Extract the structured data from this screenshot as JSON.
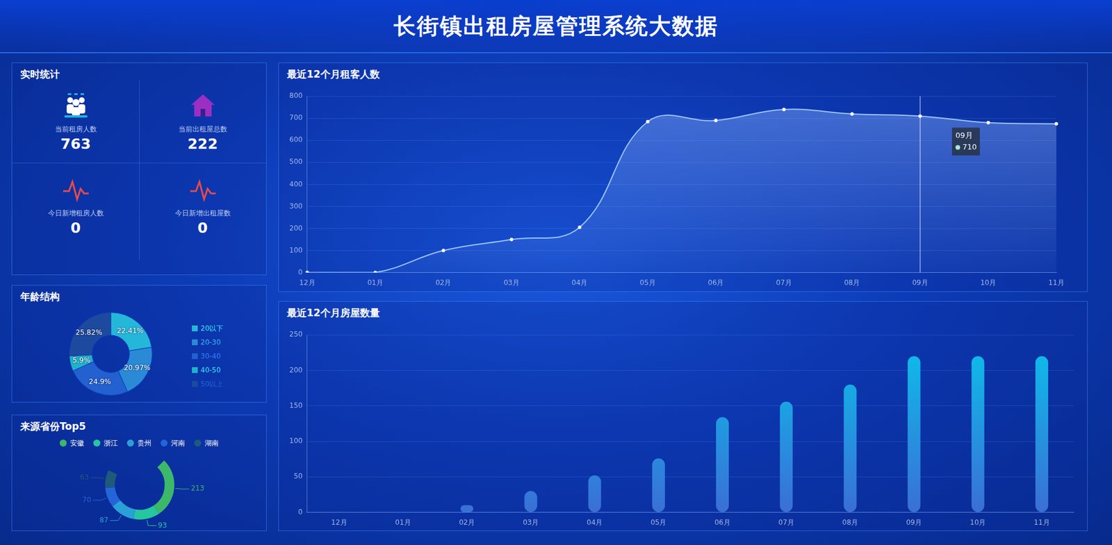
{
  "title": "长街镇出租房屋管理系统大数据",
  "stats": {
    "title": "实时统计",
    "items": [
      {
        "label": "当前租房人数",
        "value": 763
      },
      {
        "label": "当前出租屋总数",
        "value": 222
      },
      {
        "label": "今日新增租房人数",
        "value": 0
      },
      {
        "label": "今日新增出租屋数",
        "value": 0
      }
    ]
  },
  "chart_data": [
    {
      "type": "line",
      "title": "最近12个月租客人数",
      "categories": [
        "12月",
        "01月",
        "02月",
        "03月",
        "04月",
        "05月",
        "06月",
        "07月",
        "08月",
        "09月",
        "10月",
        "11月"
      ],
      "values": [
        0,
        0,
        100,
        150,
        205,
        685,
        690,
        740,
        720,
        710,
        680,
        675
      ],
      "color": "#9cc3ff",
      "ylim": [
        0,
        800
      ],
      "yticks": [
        0,
        100,
        200,
        300,
        400,
        500,
        600,
        700,
        800
      ],
      "grid": true,
      "annotations": [
        {
          "category": "09月",
          "value": 710
        }
      ]
    },
    {
      "type": "bar",
      "title": "最近12个月房屋数量",
      "categories": [
        "12月",
        "01月",
        "02月",
        "03月",
        "04月",
        "05月",
        "06月",
        "07月",
        "08月",
        "09月",
        "10月",
        "11月"
      ],
      "values": [
        0,
        0,
        10,
        30,
        52,
        76,
        134,
        156,
        180,
        220,
        220,
        220
      ],
      "color": "#0ac2eb",
      "ylim": [
        0,
        250
      ],
      "yticks": [
        0,
        50,
        100,
        150,
        200,
        250
      ],
      "grid": true
    },
    {
      "type": "doughnut",
      "title": "年龄结构",
      "categories": [
        "20以下",
        "20-30",
        "30-40",
        "40-50",
        "50以上"
      ],
      "values": [
        22.41,
        20.97,
        24.9,
        5.9,
        25.82
      ],
      "value_labels": [
        "22.41%",
        "20.97%",
        "24.9%",
        "5.9%",
        "25.82%"
      ],
      "colors": [
        "#25b7d9",
        "#2a8ad6",
        "#2360d0",
        "#1fb3c9",
        "#1d4a9e"
      ],
      "data_labels": true,
      "legend": "right"
    },
    {
      "type": "doughnut",
      "title": "来源省份Top5",
      "categories": [
        "安徽",
        "浙江",
        "贵州",
        "河南",
        "湖南"
      ],
      "values": [
        213,
        93,
        87,
        70,
        63
      ],
      "colors": [
        "#3cb86a",
        "#26c6a0",
        "#2b9fd8",
        "#2563d8",
        "#1e5a7a"
      ],
      "data_labels": true,
      "legend": "top"
    }
  ]
}
